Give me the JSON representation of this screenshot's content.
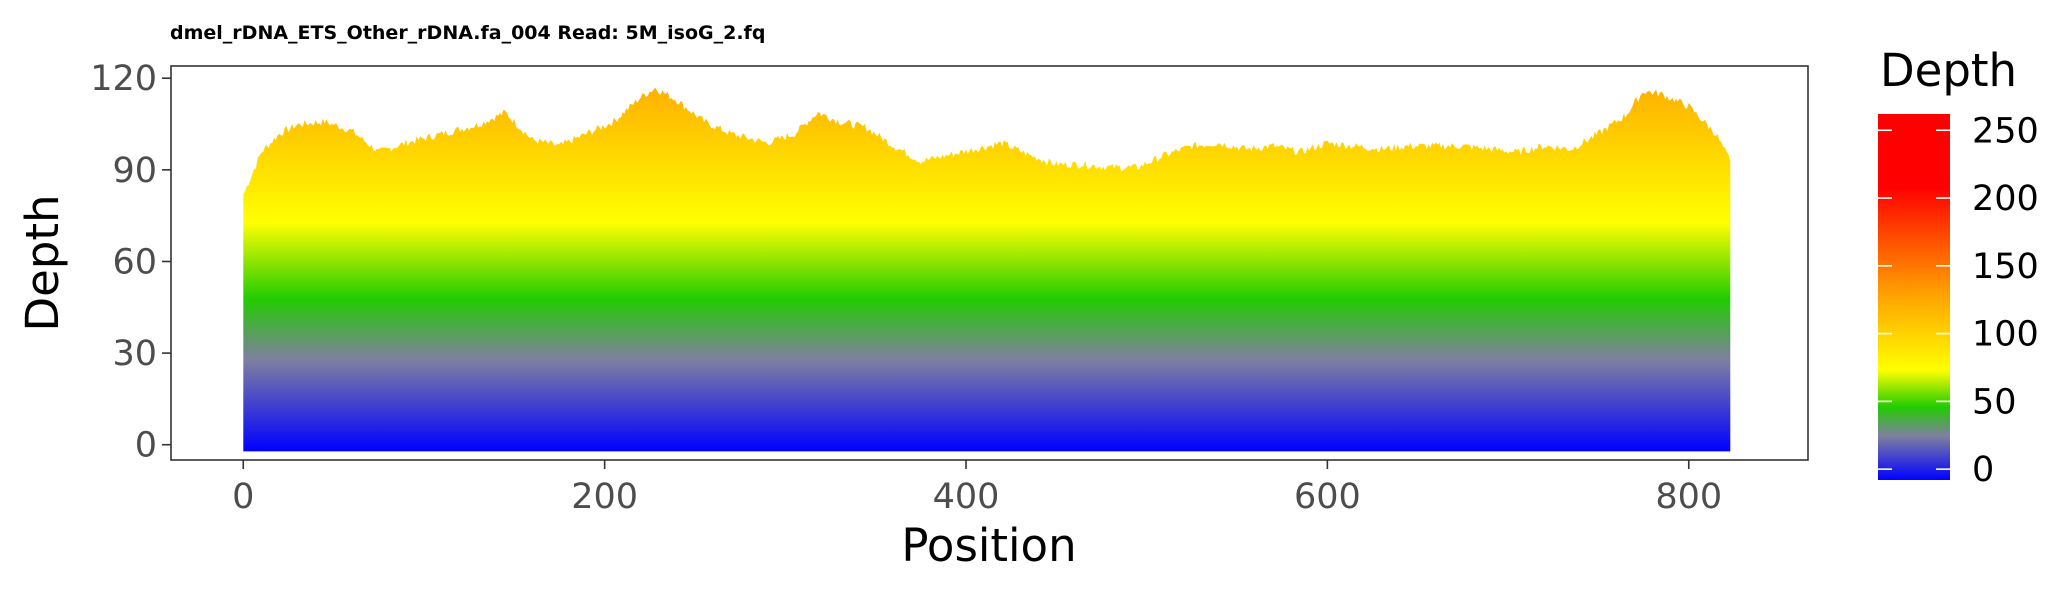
{
  "chart_data": {
    "type": "area",
    "title": "dmel_rDNA_ETS_Other_rDNA.fa_004 Read: 5M_isoG_2.fq",
    "xlabel": "Position",
    "ylabel": "Depth",
    "xlim": [
      -40,
      866
    ],
    "ylim": [
      -5,
      124
    ],
    "xticks": [
      0,
      200,
      400,
      600,
      800
    ],
    "yticks": [
      0,
      30,
      60,
      90,
      120
    ],
    "grid": false,
    "series": [
      {
        "x": [
          0,
          10,
          20,
          30,
          45,
          60,
          75,
          90,
          110,
          130,
          145,
          160,
          175,
          190,
          205,
          220,
          228,
          240,
          255,
          270,
          290,
          305,
          318,
          330,
          345,
          360,
          375,
          390,
          405,
          420,
          435,
          450,
          465,
          480,
          495,
          510,
          525,
          540,
          555,
          570,
          585,
          600,
          615,
          630,
          645,
          660,
          675,
          690,
          705,
          720,
          735,
          750,
          765,
          775,
          785,
          800,
          815,
          823
        ],
        "y": [
          84,
          98,
          104,
          107,
          108,
          105,
          98,
          101,
          104,
          107,
          111,
          102,
          100,
          104,
          108,
          116,
          119,
          115,
          108,
          104,
          101,
          104,
          111,
          108,
          106,
          100,
          95,
          97,
          99,
          101,
          97,
          94,
          94,
          93,
          93,
          97,
          100,
          101,
          99,
          100,
          98,
          101,
          100,
          99,
          100,
          100,
          100,
          99,
          98,
          100,
          99,
          104,
          110,
          118,
          117,
          113,
          104,
          95
        ]
      }
    ],
    "fill_gradient": "vertical by depth",
    "legend": {
      "title": "Depth",
      "position": "right",
      "labels": [
        "250",
        "200",
        "150",
        "100",
        "50",
        "0"
      ],
      "range": [
        0,
        250
      ],
      "colors": [
        "#0000ff",
        "#7f7fa0",
        "#22cc00",
        "#ffff00",
        "#ffa500",
        "#ff0000"
      ]
    }
  }
}
